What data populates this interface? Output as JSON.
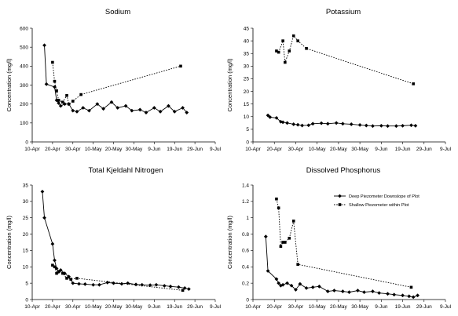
{
  "chart_data": [
    {
      "type": "line",
      "title": "Sodium",
      "ylabel": "Concentration (mg/l)",
      "ylim": [
        0,
        600
      ],
      "yticks": [
        0,
        100,
        200,
        300,
        400,
        500,
        600
      ],
      "xticks": [
        "10-Apr",
        "20-Apr",
        "30-Apr",
        "10-May",
        "20-May",
        "30-May",
        "9-Jun",
        "19-Jun",
        "29-Jun",
        "9-Jul"
      ],
      "series": [
        {
          "name": "Deep Piezometer Downslope of Plot",
          "marker": "diamond",
          "style": "solid",
          "x": [
            "2004-04-16",
            "2004-04-17",
            "2004-04-21",
            "2004-04-22",
            "2004-04-23",
            "2004-04-24",
            "2004-04-26",
            "2004-04-28",
            "2004-04-30",
            "2004-05-02",
            "2004-05-05",
            "2004-05-08",
            "2004-05-12",
            "2004-05-15",
            "2004-05-19",
            "2004-05-22",
            "2004-05-26",
            "2004-05-29",
            "2004-06-02",
            "2004-06-05",
            "2004-06-09",
            "2004-06-12",
            "2004-06-16",
            "2004-06-19",
            "2004-06-23",
            "2004-06-25"
          ],
          "values": [
            510,
            305,
            290,
            220,
            205,
            190,
            200,
            200,
            165,
            160,
            180,
            165,
            200,
            175,
            210,
            180,
            190,
            165,
            170,
            155,
            180,
            160,
            190,
            160,
            180,
            155
          ]
        },
        {
          "name": "Shallow Piezometer within Plot",
          "marker": "square",
          "style": "dotted",
          "x": [
            "2004-04-20",
            "2004-04-21",
            "2004-04-22",
            "2004-04-23",
            "2004-04-25",
            "2004-04-27",
            "2004-04-28",
            "2004-04-30",
            "2004-05-04",
            "2004-06-22"
          ],
          "values": [
            420,
            320,
            270,
            220,
            210,
            245,
            200,
            215,
            250,
            400
          ]
        }
      ]
    },
    {
      "type": "line",
      "title": "Potassium",
      "ylabel": "Concentration (mg/l)",
      "ylim": [
        0,
        45
      ],
      "yticks": [
        0,
        5,
        10,
        15,
        20,
        25,
        30,
        35,
        40,
        45
      ],
      "xticks": [
        "10-Apr",
        "20-Apr",
        "30-Apr",
        "10-May",
        "20-May",
        "30-May",
        "9-Jun",
        "19-Jun",
        "29-Jun",
        "9-Jul"
      ],
      "series": [
        {
          "name": "Deep Piezometer Downslope of Plot",
          "marker": "diamond",
          "style": "solid",
          "x": [
            "2004-04-17",
            "2004-04-18",
            "2004-04-21",
            "2004-04-23",
            "2004-04-24",
            "2004-04-26",
            "2004-04-29",
            "2004-05-01",
            "2004-05-03",
            "2004-05-06",
            "2004-05-08",
            "2004-05-12",
            "2004-05-15",
            "2004-05-19",
            "2004-05-22",
            "2004-05-26",
            "2004-05-30",
            "2004-06-02",
            "2004-06-05",
            "2004-06-09",
            "2004-06-12",
            "2004-06-16",
            "2004-06-19",
            "2004-06-23",
            "2004-06-25"
          ],
          "values": [
            10.5,
            9.8,
            9.5,
            8.0,
            7.8,
            7.5,
            7.0,
            6.8,
            6.5,
            6.6,
            7.2,
            7.4,
            7.2,
            7.5,
            7.2,
            7.0,
            6.7,
            6.5,
            6.3,
            6.4,
            6.3,
            6.3,
            6.4,
            6.6,
            6.4
          ]
        },
        {
          "name": "Shallow Piezometer within Plot",
          "marker": "square",
          "style": "dotted",
          "x": [
            "2004-04-21",
            "2004-04-22",
            "2004-04-24",
            "2004-04-25",
            "2004-04-27",
            "2004-04-29",
            "2004-05-01",
            "2004-05-05",
            "2004-06-24"
          ],
          "values": [
            36,
            35.5,
            40,
            31.5,
            36,
            42,
            40,
            37,
            23
          ]
        }
      ]
    },
    {
      "type": "line",
      "title": "Total Kjeldahl Nitrogen",
      "ylabel": "Concentration (mg/l)",
      "ylim": [
        0,
        35
      ],
      "yticks": [
        0,
        5,
        10,
        15,
        20,
        25,
        30,
        35
      ],
      "xticks": [
        "10-Apr",
        "20-Apr",
        "30-Apr",
        "10-May",
        "20-May",
        "30-May",
        "9-Jun",
        "19-Jun",
        "29-Jun",
        "9-Jul"
      ],
      "series": [
        {
          "name": "Deep Piezometer Downslope of Plot",
          "marker": "diamond",
          "style": "solid",
          "x": [
            "2004-04-15",
            "2004-04-16",
            "2004-04-20",
            "2004-04-21",
            "2004-04-22",
            "2004-04-23",
            "2004-04-24",
            "2004-04-26",
            "2004-04-28",
            "2004-04-30",
            "2004-05-03",
            "2004-05-06",
            "2004-05-10",
            "2004-05-13",
            "2004-05-17",
            "2004-05-20",
            "2004-05-24",
            "2004-05-27",
            "2004-05-31",
            "2004-06-03",
            "2004-06-07",
            "2004-06-10",
            "2004-06-14",
            "2004-06-17",
            "2004-06-21",
            "2004-06-24",
            "2004-06-26"
          ],
          "values": [
            33,
            25,
            17,
            12,
            9.5,
            8.5,
            9.0,
            8.0,
            7.0,
            5.0,
            4.8,
            4.7,
            4.5,
            4.5,
            5.2,
            5.0,
            4.8,
            5.0,
            4.6,
            4.5,
            4.4,
            4.5,
            4.2,
            4.0,
            3.8,
            3.5,
            3.2
          ]
        },
        {
          "name": "Shallow Piezometer within Plot",
          "marker": "square",
          "style": "dotted",
          "x": [
            "2004-04-20",
            "2004-04-21",
            "2004-04-22",
            "2004-04-23",
            "2004-04-25",
            "2004-04-27",
            "2004-04-29",
            "2004-05-02",
            "2004-06-23"
          ],
          "values": [
            10.5,
            10,
            8,
            8.5,
            8,
            6.5,
            6.2,
            6.5,
            2.8
          ]
        }
      ]
    },
    {
      "type": "line",
      "title": "Dissolved Phosphorus",
      "ylabel": "Concentration (mg/l)",
      "ylim": [
        0,
        1.4
      ],
      "yticks": [
        0,
        0.2,
        0.4,
        0.6,
        0.8,
        1,
        1.2,
        1.4
      ],
      "xticks": [
        "10-Apr",
        "20-Apr",
        "30-Apr",
        "10-May",
        "20-May",
        "30-May",
        "9-Jun",
        "19-Jun",
        "29-Jun",
        "9-Jul"
      ],
      "legend": [
        "Deep Piezometer Downslope of Plot",
        "Shallow Piezometer within Plot"
      ],
      "legend_position": "top-right",
      "series": [
        {
          "name": "Deep Piezometer Downslope of Plot",
          "marker": "diamond",
          "style": "solid",
          "x": [
            "2004-04-16",
            "2004-04-17",
            "2004-04-21",
            "2004-04-22",
            "2004-04-23",
            "2004-04-24",
            "2004-04-26",
            "2004-04-28",
            "2004-04-30",
            "2004-05-02",
            "2004-05-05",
            "2004-05-08",
            "2004-05-11",
            "2004-05-15",
            "2004-05-18",
            "2004-05-22",
            "2004-05-25",
            "2004-05-29",
            "2004-06-01",
            "2004-06-05",
            "2004-06-08",
            "2004-06-12",
            "2004-06-15",
            "2004-06-19",
            "2004-06-22",
            "2004-06-24",
            "2004-06-26"
          ],
          "values": [
            0.77,
            0.35,
            0.25,
            0.2,
            0.17,
            0.18,
            0.2,
            0.17,
            0.12,
            0.19,
            0.14,
            0.15,
            0.16,
            0.1,
            0.11,
            0.1,
            0.09,
            0.11,
            0.09,
            0.1,
            0.08,
            0.07,
            0.06,
            0.05,
            0.04,
            0.03,
            0.05
          ]
        },
        {
          "name": "Shallow Piezometer within Plot",
          "marker": "square",
          "style": "dotted",
          "x": [
            "2004-04-21",
            "2004-04-22",
            "2004-04-23",
            "2004-04-24",
            "2004-04-25",
            "2004-04-27",
            "2004-04-29",
            "2004-05-01",
            "2004-06-23"
          ],
          "values": [
            1.23,
            1.12,
            0.65,
            0.7,
            0.7,
            0.75,
            0.96,
            0.43,
            0.15
          ]
        }
      ]
    }
  ]
}
